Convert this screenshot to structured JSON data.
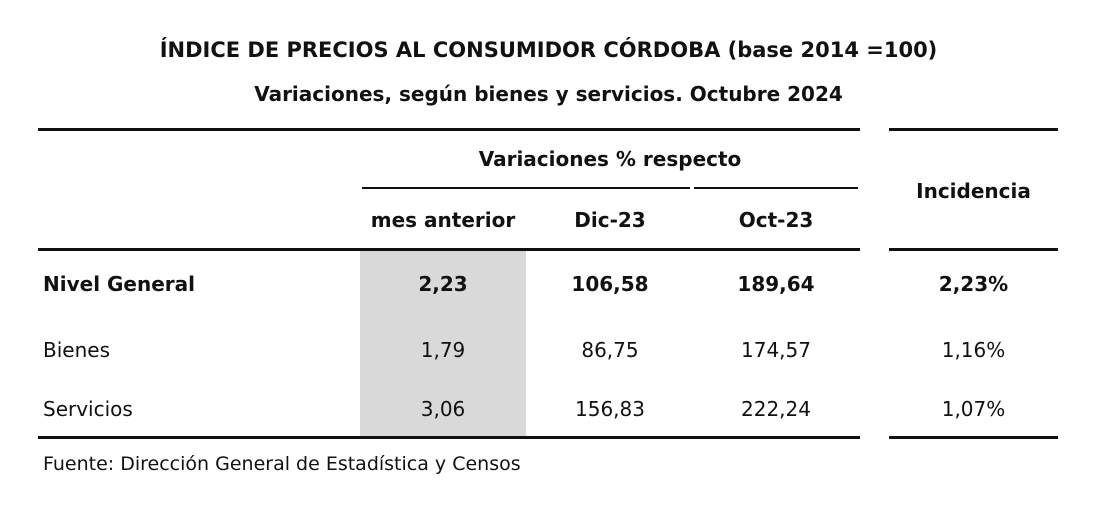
{
  "header": {
    "title": "ÍNDICE DE PRECIOS AL CONSUMIDOR CÓRDOBA (base 2014 =100)",
    "subtitle": "Variaciones, según bienes y servicios. Octubre 2024"
  },
  "table": {
    "group_header": "Variaciones % respecto",
    "columns": [
      "mes anterior",
      "Dic-23",
      "Oct-23"
    ],
    "incidence_header": "Incidencia",
    "rows": [
      {
        "label": "Nivel General",
        "values": [
          "2,23",
          "106,58",
          "189,64"
        ],
        "incidence": "2,23%"
      },
      {
        "label": "Bienes",
        "values": [
          "1,79",
          "86,75",
          "174,57"
        ],
        "incidence": "1,16%"
      },
      {
        "label": "Servicios",
        "values": [
          "3,06",
          "156,83",
          "222,24"
        ],
        "incidence": "1,07%"
      }
    ]
  },
  "chart_data": {
    "type": "table",
    "title": "ÍNDICE DE PRECIOS AL CONSUMIDOR CÓRDOBA (base 2014 =100)",
    "subtitle": "Variaciones, según bienes y servicios. Octubre 2024",
    "columns": [
      "mes anterior",
      "Dic-23",
      "Oct-23",
      "Incidencia"
    ],
    "rows": [
      {
        "label": "Nivel General",
        "mes_anterior": 2.23,
        "dic_23": 106.58,
        "oct_23": 189.64,
        "incidencia_pct": 2.23
      },
      {
        "label": "Bienes",
        "mes_anterior": 1.79,
        "dic_23": 86.75,
        "oct_23": 174.57,
        "incidencia_pct": 1.16
      },
      {
        "label": "Servicios",
        "mes_anterior": 3.06,
        "dic_23": 156.83,
        "oct_23": 222.24,
        "incidencia_pct": 1.07
      }
    ]
  },
  "footer": {
    "source": "Fuente: Dirección General de Estadística y Censos"
  }
}
